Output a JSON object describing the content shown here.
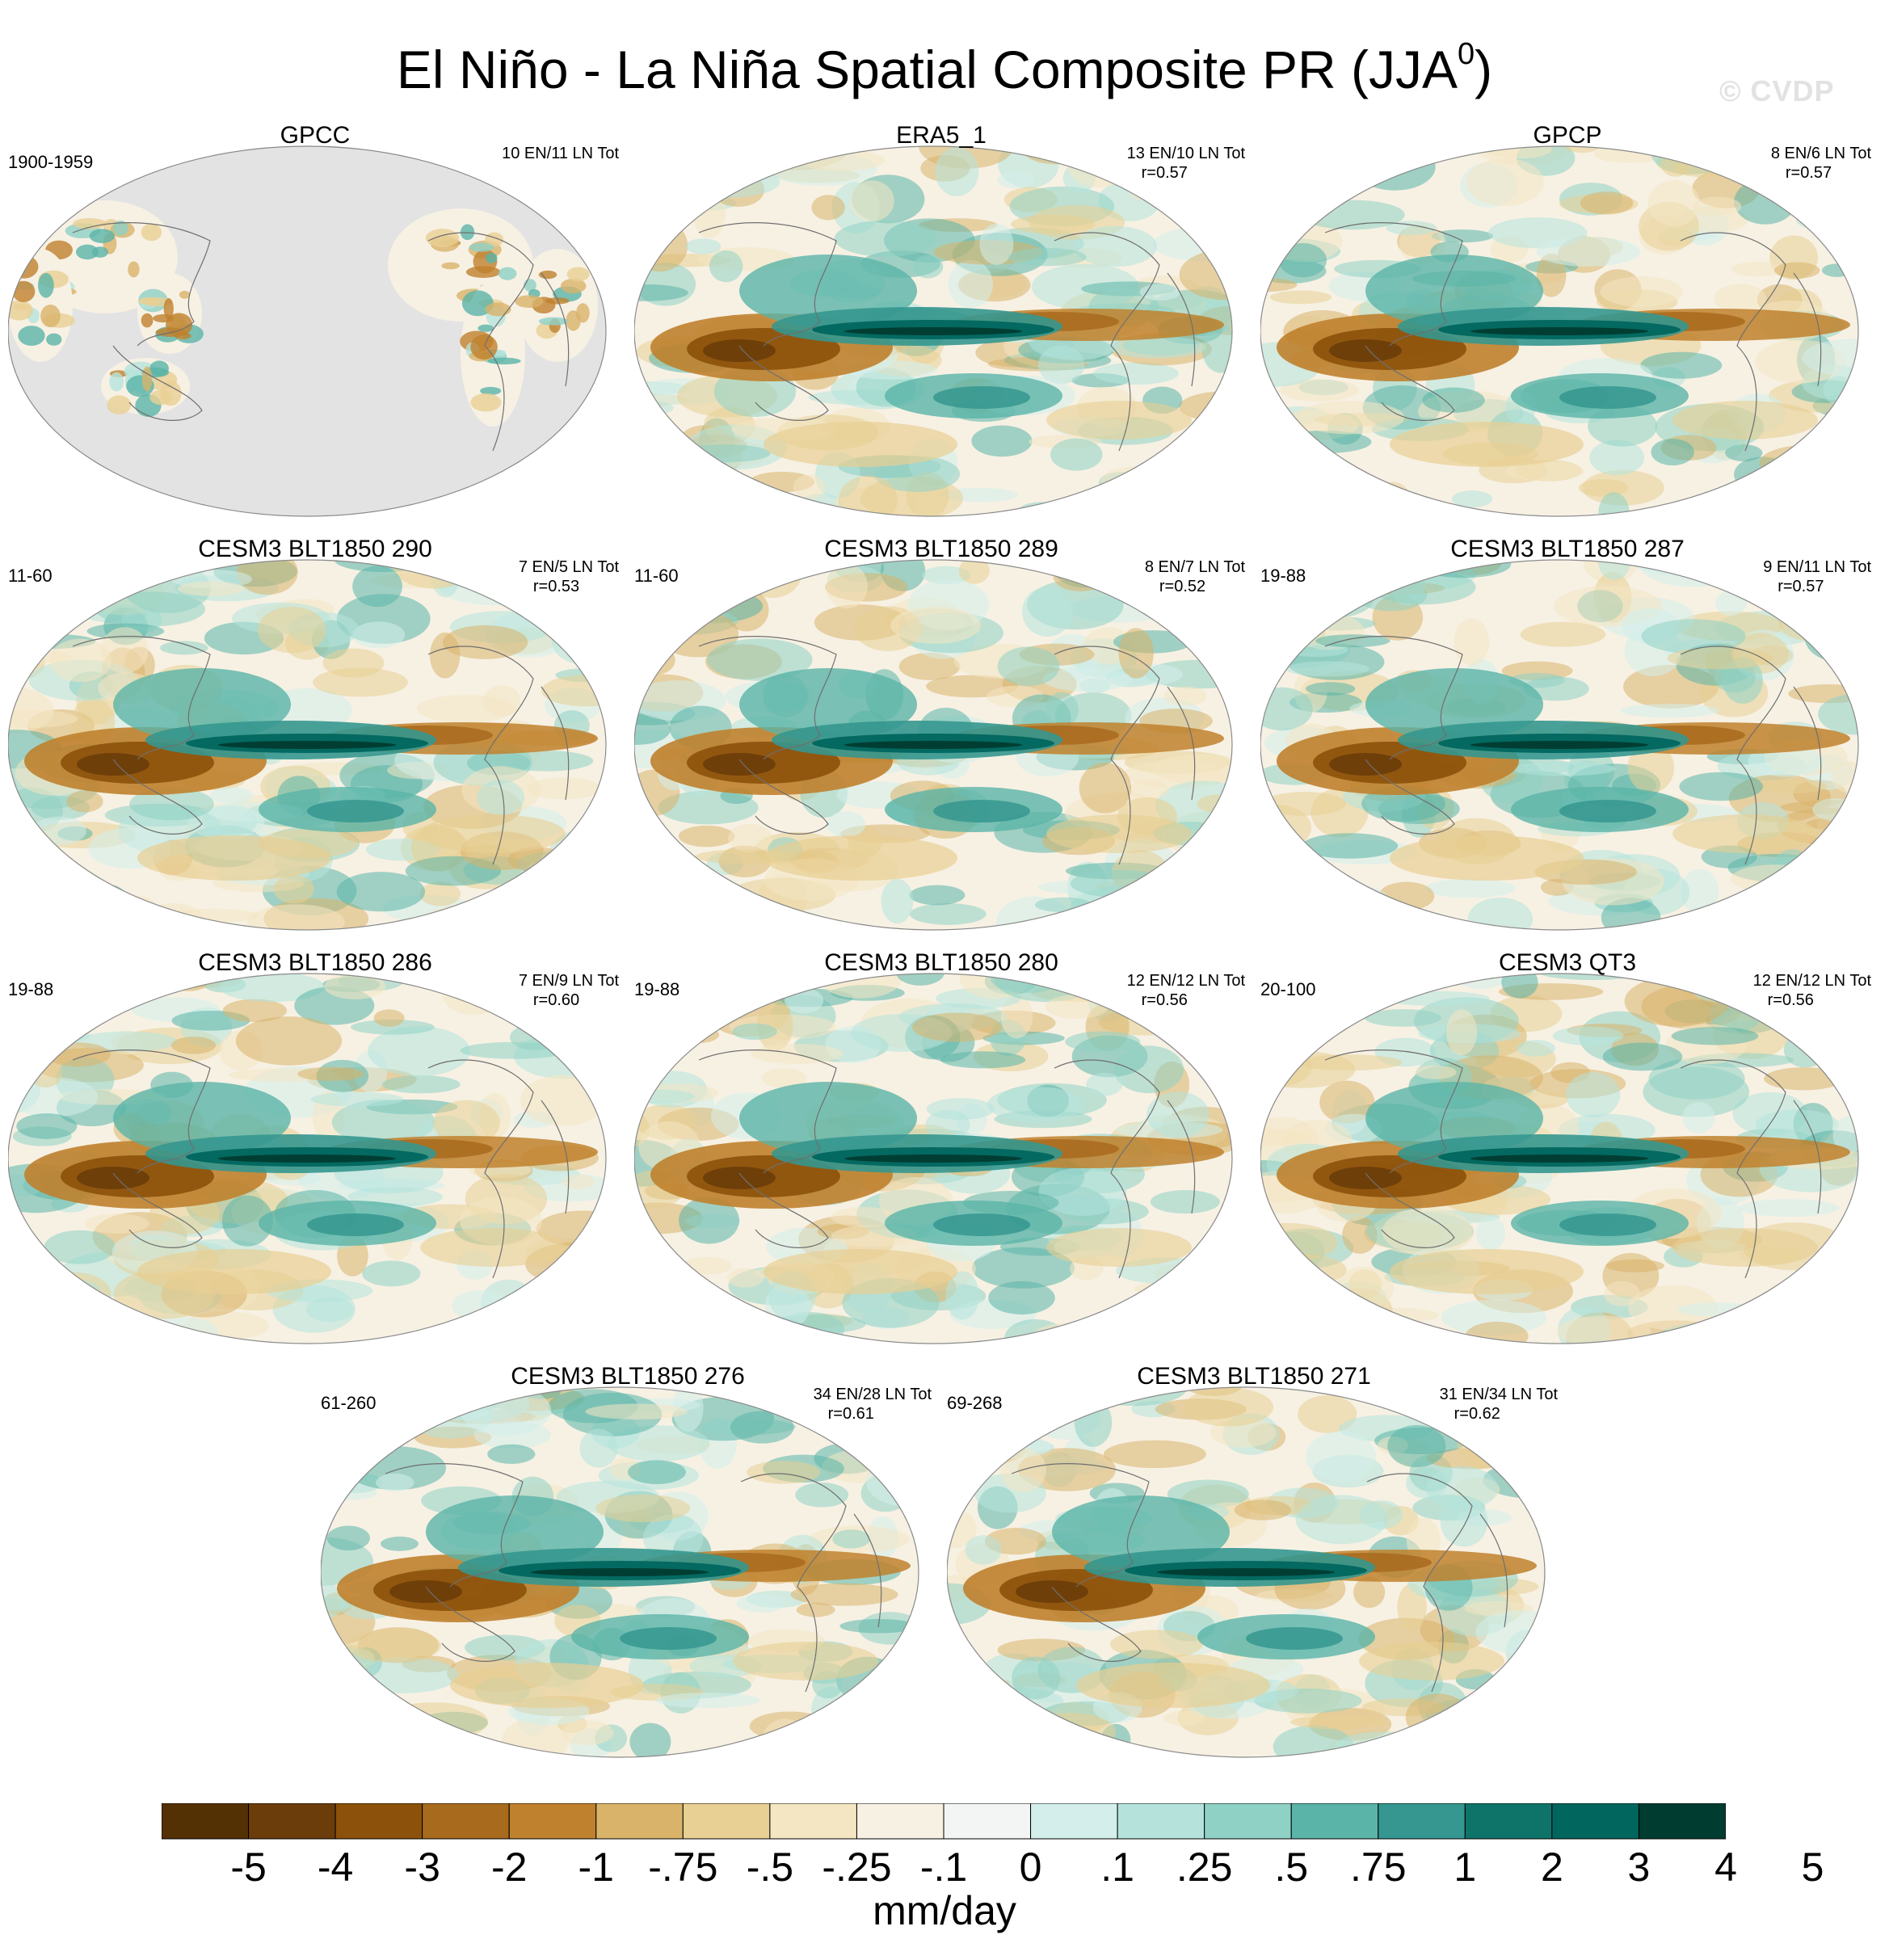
{
  "title": "El Niño - La Niña Spatial Composite PR (JJA",
  "title_superscript": "0",
  "title_suffix": ")",
  "watermark": "© CVDP",
  "colors": {
    "ocean_fill_missing": "#e3e3e3",
    "coast": "#6f6f6f",
    "palette": [
      "#543005",
      "#6b3d0a",
      "#8c510a",
      "#a86a1d",
      "#bf812d",
      "#d9b36a",
      "#e8cf93",
      "#f4e6c3",
      "#f7f1e4",
      "#f2f5f4",
      "#d4efeb",
      "#b5e3dc",
      "#8fd1c5",
      "#5ab4a8",
      "#35978f",
      "#0e7469",
      "#01665e",
      "#003c30"
    ]
  },
  "panels": [
    {
      "id": "gpcc",
      "title": "GPCC",
      "left_label": "1900-1959",
      "right_label_1": "10 EN/11 LN Tot",
      "right_label_2": "",
      "land_only": true
    },
    {
      "id": "era5",
      "title": "ERA5_1",
      "left_label": "",
      "right_label_1": "13 EN/10 LN Tot",
      "right_label_2": "r=0.57",
      "land_only": false
    },
    {
      "id": "gpcp",
      "title": "GPCP",
      "left_label": "",
      "right_label_1": "8 EN/6 LN Tot",
      "right_label_2": "r=0.57",
      "land_only": false
    },
    {
      "id": "blt290",
      "title": "CESM3 BLT1850 290",
      "left_label": "11-60",
      "right_label_1": "7 EN/5 LN Tot",
      "right_label_2": "r=0.53",
      "land_only": false
    },
    {
      "id": "blt289",
      "title": "CESM3 BLT1850 289",
      "left_label": "11-60",
      "right_label_1": "8 EN/7 LN Tot",
      "right_label_2": "r=0.52",
      "land_only": false
    },
    {
      "id": "blt287",
      "title": "CESM3 BLT1850 287",
      "left_label": "19-88",
      "right_label_1": "9 EN/11 LN Tot",
      "right_label_2": "r=0.57",
      "land_only": false
    },
    {
      "id": "blt286",
      "title": "CESM3 BLT1850 286",
      "left_label": "19-88",
      "right_label_1": "7 EN/9 LN Tot",
      "right_label_2": "r=0.60",
      "land_only": false
    },
    {
      "id": "blt280",
      "title": "CESM3 BLT1850 280",
      "left_label": "19-88",
      "right_label_1": "12 EN/12 LN Tot",
      "right_label_2": "r=0.56",
      "land_only": false
    },
    {
      "id": "qt3",
      "title": "CESM3 QT3",
      "left_label": "20-100",
      "right_label_1": "12 EN/12 LN Tot",
      "right_label_2": "r=0.56",
      "land_only": false
    },
    {
      "id": "blt276",
      "title": "CESM3 BLT1850 276",
      "left_label": "61-260",
      "right_label_1": "34 EN/28 LN Tot",
      "right_label_2": "r=0.61",
      "land_only": false
    },
    {
      "id": "blt271",
      "title": "CESM3 BLT1850 271",
      "left_label": "69-268",
      "right_label_1": "31 EN/34 LN Tot",
      "right_label_2": "r=0.62",
      "land_only": false
    }
  ],
  "colorbar": {
    "labels": [
      "-5",
      "-4",
      "-3",
      "-2",
      "-1",
      "-.75",
      "-.5",
      "-.25",
      "-.1",
      "0",
      ".1",
      ".25",
      ".5",
      ".75",
      "1",
      "2",
      "3",
      "4",
      "5"
    ],
    "unit": "mm/day"
  }
}
